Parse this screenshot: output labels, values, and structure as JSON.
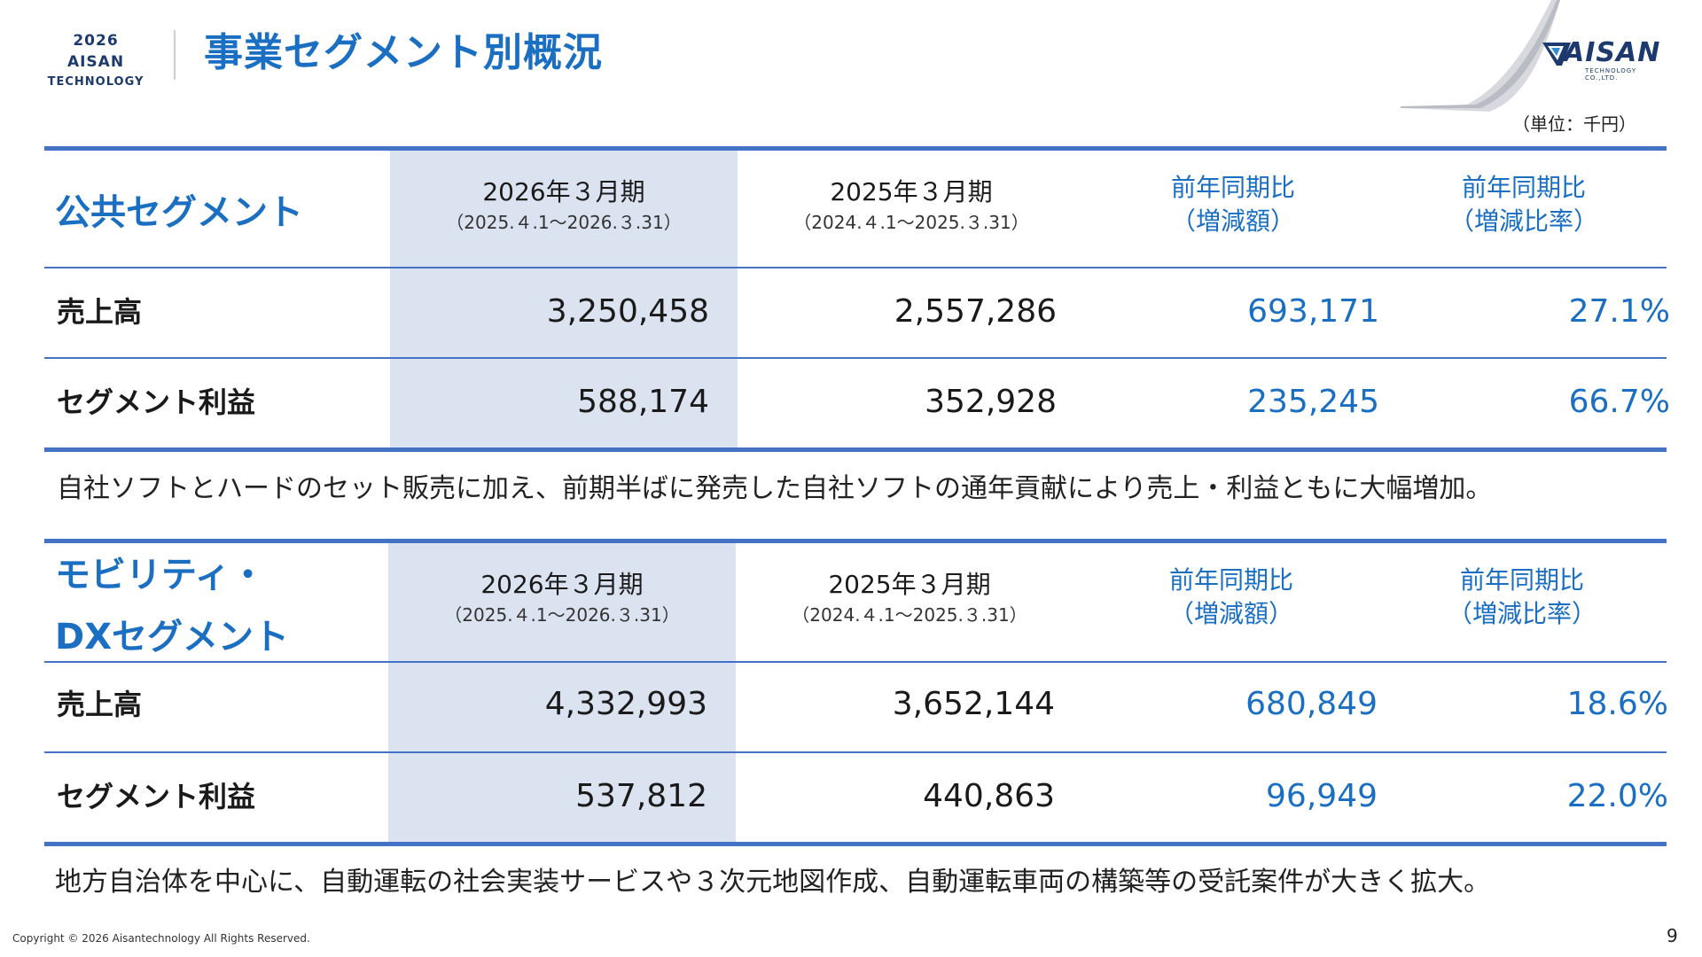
{
  "header": {
    "badge_line1": "2026 AISAN",
    "badge_line2": "TECHNOLOGY",
    "title": "事業セグメント別概況",
    "logo_text": "AISAN",
    "logo_sub": "TECHNOLOGY CO.,LTD."
  },
  "unit": "（単位：千円）",
  "columns": {
    "current_year": "2026年３月期",
    "current_range": "（2025.４.1～2026.３.31）",
    "prior_year": "2025年３月期",
    "prior_range": "（2024.４.1～2025.３.31）",
    "yoy_amount_l1": "前年同期比",
    "yoy_amount_l2": "（増減額）",
    "yoy_rate_l1": "前年同期比",
    "yoy_rate_l2": "（増減比率）"
  },
  "segments": [
    {
      "name_l1": "公共セグメント",
      "name_l2": "",
      "rows": [
        {
          "label": "売上高",
          "current": "3,250,458",
          "prior": "2,557,286",
          "diff": "693,171",
          "rate": "27.1%"
        },
        {
          "label": "セグメント利益",
          "current": "588,174",
          "prior": "352,928",
          "diff": "235,245",
          "rate": "66.7%"
        }
      ],
      "note": "自社ソフトとハードのセット販売に加え、前期半ばに発売した自社ソフトの通年貢献により売上・利益ともに大幅増加。"
    },
    {
      "name_l1": "モビリティ・",
      "name_l2": "DXセグメント",
      "rows": [
        {
          "label": "売上高",
          "current": "4,332,993",
          "prior": "3,652,144",
          "diff": "680,849",
          "rate": "18.6%"
        },
        {
          "label": "セグメント利益",
          "current": "537,812",
          "prior": "440,863",
          "diff": "96,949",
          "rate": "22.0%"
        }
      ],
      "note": "地方自治体を中心に、自動運転の社会実装サービスや３次元地図作成、自動運転車両の構築等の受託案件が大きく拡大。"
    }
  ],
  "footer": {
    "copyright": "Copyright © 2026 Aisantechnology All Rights Reserved.",
    "page": "9"
  },
  "colors": {
    "accent_blue": "#1b6fc2",
    "rule_blue": "#4472c4",
    "highlight": "#dbe3f1",
    "navy": "#1d3a6e"
  }
}
